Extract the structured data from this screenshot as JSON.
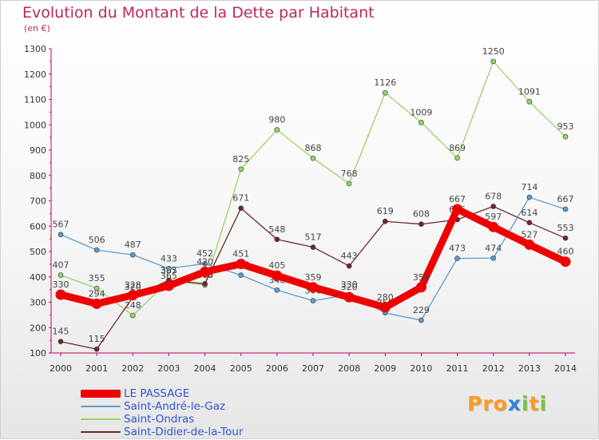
{
  "header": {
    "title": "Evolution du Montant de la Dette par Habitant",
    "unit": "(en €)"
  },
  "logo": {
    "p1": "Pro",
    "x": "x",
    "i1": "i",
    "t": "t",
    "i2": "i"
  },
  "chart_data": {
    "type": "line",
    "title": "Evolution du Montant de la Dette par Habitant",
    "ylabel": "(en €)",
    "xlabel": "",
    "x": [
      "2000",
      "2001",
      "2002",
      "2003",
      "2004",
      "2005",
      "2006",
      "2007",
      "2008",
      "2009",
      "2010",
      "2011",
      "2012",
      "2013",
      "2014"
    ],
    "ylim": [
      100,
      1300
    ],
    "yticks": [
      100,
      200,
      300,
      400,
      500,
      600,
      700,
      800,
      900,
      1000,
      1100,
      1200,
      1300
    ],
    "grid": false,
    "legend_position": "bottom-left",
    "series": [
      {
        "name": "Saint-Ondras",
        "color": "#99d466",
        "values": [
          407,
          355,
          248,
          385,
          368,
          825,
          980,
          868,
          768,
          1126,
          1009,
          869,
          1250,
          1091,
          953
        ]
      },
      {
        "name": "Saint-Didier-de-la-Tour",
        "color": "#6e2828",
        "values": [
          145,
          115,
          320,
          387,
          373,
          671,
          548,
          517,
          443,
          619,
          608,
          626,
          678,
          614,
          553
        ]
      },
      {
        "name": "Saint-André-le-Gaz",
        "color": "#5d9ccf",
        "values": [
          567,
          506,
          487,
          433,
          452,
          407,
          348,
          306,
          330,
          258,
          229,
          473,
          474,
          714,
          667
        ]
      },
      {
        "name": "LE PASSAGE",
        "color": "#ee0000",
        "values": [
          330,
          294,
          328,
          365,
          420,
          451,
          405,
          359,
          320,
          280,
          359,
          667,
          597,
          527,
          460
        ]
      }
    ]
  },
  "legend": {
    "items": [
      {
        "label": "LE PASSAGE",
        "color": "#ee0000",
        "width": 10
      },
      {
        "label": "Saint-André-le-Gaz",
        "color": "#5d9ccf",
        "width": 2
      },
      {
        "label": "Saint-Ondras",
        "color": "#99d466",
        "width": 2
      },
      {
        "label": "Saint-Didier-de-la-Tour",
        "color": "#6e2828",
        "width": 2
      }
    ]
  }
}
